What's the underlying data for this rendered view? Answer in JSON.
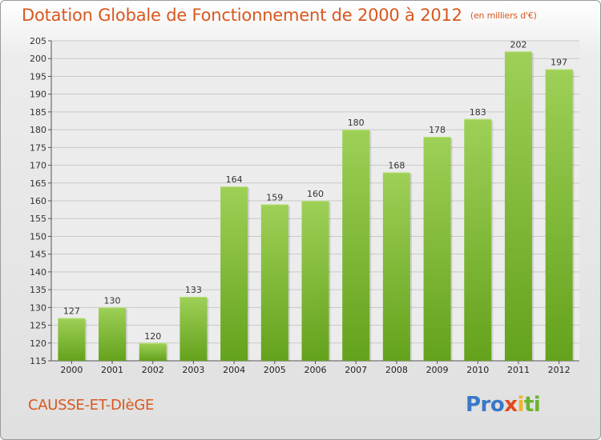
{
  "title": "Dotation Globale de Fonctionnement de 2000 à 2012",
  "subtitle": "(en milliers d'€)",
  "commune": "CAUSSE-ET-DIèGE",
  "logo": {
    "parts": [
      {
        "text": "Pro",
        "color": "#3a78c8"
      },
      {
        "text": "x",
        "color": "#e24a1a"
      },
      {
        "text": "i",
        "color": "#f0b429"
      },
      {
        "text": "ti",
        "color": "#6ab42d"
      }
    ]
  },
  "colors": {
    "bar_top": "#9ed057",
    "bar_bottom": "#64a21c",
    "title": "#d8581f",
    "grid": "#c8c8c8"
  },
  "chart_data": {
    "type": "bar",
    "categories": [
      "2000",
      "2001",
      "2002",
      "2003",
      "2004",
      "2005",
      "2006",
      "2007",
      "2008",
      "2009",
      "2010",
      "2011",
      "2012"
    ],
    "values": [
      127,
      130,
      120,
      133,
      164,
      159,
      160,
      180,
      168,
      178,
      183,
      202,
      197
    ],
    "ylim": [
      115,
      205
    ],
    "yticks": [
      115,
      120,
      125,
      130,
      135,
      140,
      145,
      150,
      155,
      160,
      165,
      170,
      175,
      180,
      185,
      190,
      195,
      200,
      205
    ],
    "grid": "horizontal",
    "xlabel": "",
    "ylabel": ""
  }
}
